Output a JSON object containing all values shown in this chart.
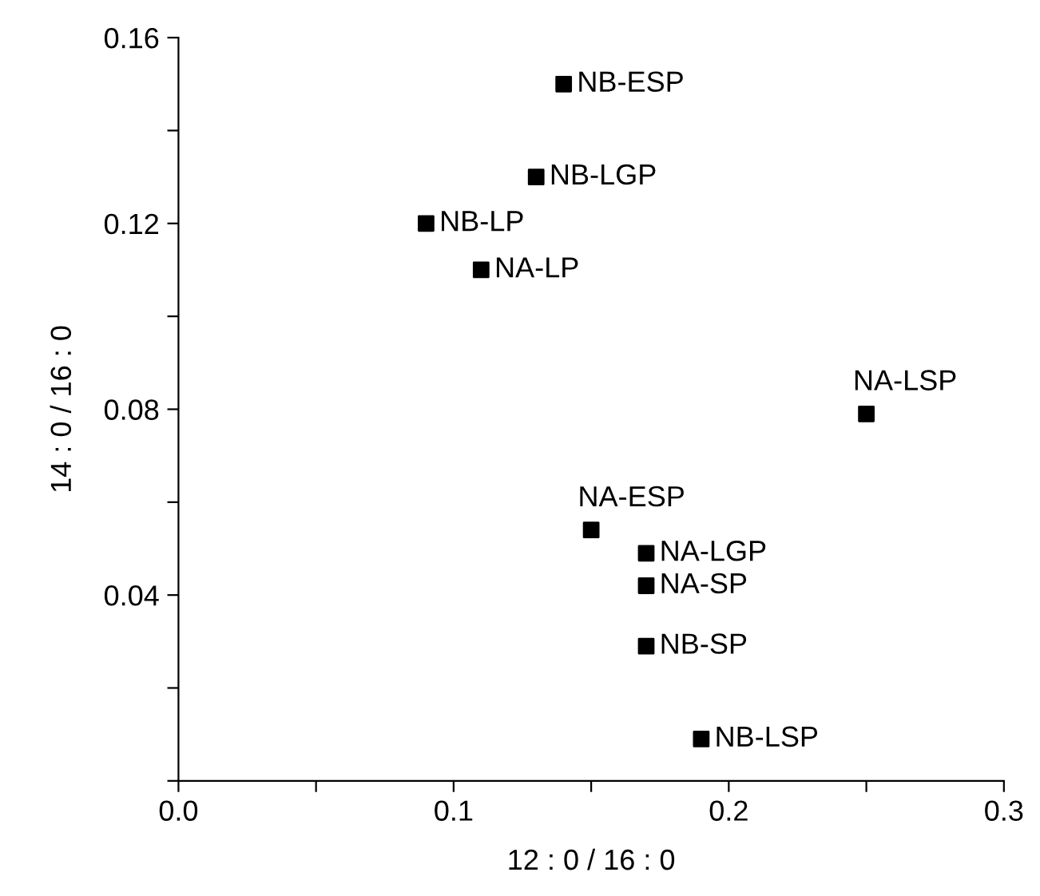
{
  "chart_data": {
    "type": "scatter",
    "xlabel": "12 : 0 / 16 : 0",
    "ylabel": "14 : 0 / 16 : 0",
    "x": [
      0.14,
      0.13,
      0.09,
      0.11,
      0.25,
      0.15,
      0.17,
      0.17,
      0.17,
      0.19
    ],
    "series": [
      {
        "color": "#000000",
        "values": [
          0.15,
          0.13,
          0.12,
          0.11,
          0.079,
          0.054,
          0.049,
          0.042,
          0.029,
          0.009
        ]
      }
    ],
    "annotations": [
      {
        "text": "NB-ESP",
        "x": 0.14,
        "y": 0.15
      },
      {
        "text": "NB-LGP",
        "x": 0.13,
        "y": 0.13
      },
      {
        "text": "NB-LP",
        "x": 0.09,
        "y": 0.12
      },
      {
        "text": "NA-LP",
        "x": 0.11,
        "y": 0.11
      },
      {
        "text": "NA-LSP",
        "x": 0.25,
        "y": 0.079
      },
      {
        "text": "NA-ESP",
        "x": 0.15,
        "y": 0.054
      },
      {
        "text": "NA-LGP",
        "x": 0.17,
        "y": 0.049
      },
      {
        "text": "NA-SP",
        "x": 0.17,
        "y": 0.042
      },
      {
        "text": "NB-SP",
        "x": 0.17,
        "y": 0.029
      },
      {
        "text": "NB-LSP",
        "x": 0.19,
        "y": 0.009
      }
    ],
    "xlim": [
      0,
      0.3
    ],
    "xticks": [
      {
        "value": 0,
        "label": "0.0"
      },
      {
        "value": 0.05,
        "label": null
      },
      0.1,
      {
        "value": 0.15,
        "label": null
      },
      0.2,
      {
        "value": 0.25,
        "label": null
      },
      0.3
    ],
    "ylim": [
      0,
      0.16
    ],
    "yticks": [
      {
        "value": 0,
        "label": null
      },
      {
        "value": 0.02,
        "label": null
      },
      0.04,
      {
        "value": 0.06,
        "label": null
      },
      0.08,
      {
        "value": 0.1,
        "label": null
      },
      0.12,
      {
        "value": 0.14,
        "label": null
      },
      0.16
    ],
    "marker": "square",
    "grid": false,
    "legend": false
  }
}
